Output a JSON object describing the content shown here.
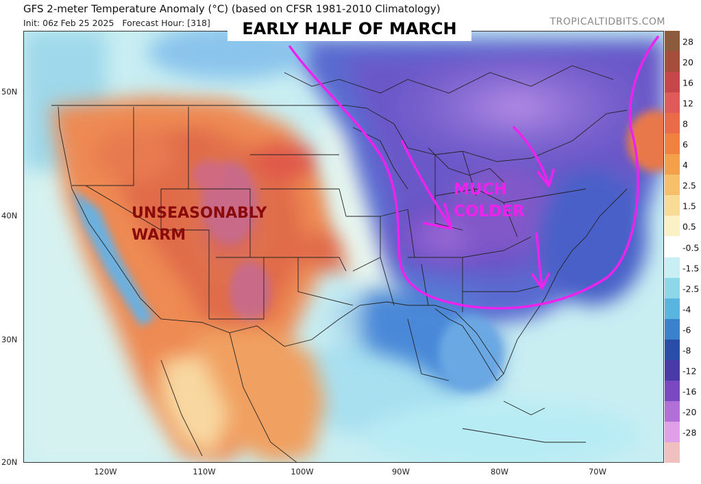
{
  "header": {
    "title": "GFS 2-meter Temperature Anomaly (°C) (based on CFSR 1981-2010 Climatology)",
    "init": "Init: 06z Feb 25 2025",
    "forecast_hour": "Forecast Hour: [318]",
    "site_credit": "TROPICALTIDBITS.COM"
  },
  "banner": {
    "text": "EARLY HALF OF MARCH"
  },
  "map": {
    "lat_labels": [
      "50N",
      "40N",
      "30N",
      "20N"
    ],
    "lon_labels": [
      "120W",
      "110W",
      "100W",
      "90W",
      "80W",
      "70W"
    ],
    "annotations": {
      "warm_line1": "UNSEASONABLY",
      "warm_line2": "WARM",
      "cold_line1": "MUCH",
      "cold_line2": "COLDER"
    },
    "annotation_colors": {
      "warm": "#8a0a0a",
      "cold": "#ee22ee"
    }
  },
  "colorbar": {
    "labels": [
      "28",
      "20",
      "16",
      "12",
      "8",
      "6",
      "4",
      "2.5",
      "1.5",
      "0.5",
      "-0.5",
      "-1.5",
      "-2.5",
      "-4",
      "-6",
      "-8",
      "-12",
      "-16",
      "-20",
      "-28"
    ],
    "colors": [
      "#8c5a3c",
      "#a64e3d",
      "#c7464a",
      "#e05a5a",
      "#ea6b48",
      "#f0813e",
      "#f4a04a",
      "#f6bf6a",
      "#f8dc96",
      "#fbf1c6",
      "#ffffff",
      "#c8eff3",
      "#8cd8e8",
      "#5ab4e0",
      "#3a82cc",
      "#2a4ea8",
      "#4a3aa8",
      "#7a48c0",
      "#b070d8",
      "#e0a0e8",
      "#f0c0c0"
    ]
  }
}
